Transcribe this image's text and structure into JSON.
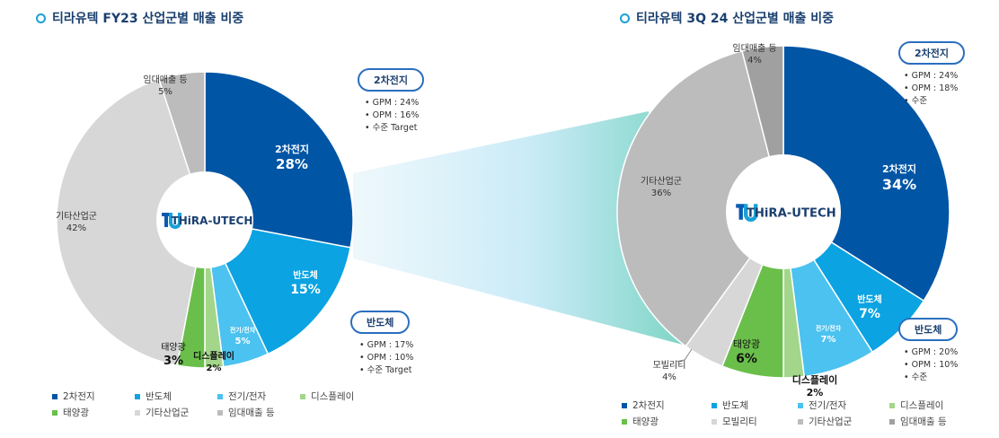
{
  "chart_data": [
    {
      "type": "pie",
      "title": "티라유텍  FY23 산업군별 매출 비중",
      "center_logo": "THiRA-UTECH",
      "slices": [
        {
          "label": "2차전지",
          "value": 28,
          "value_label": "28%",
          "color": "#0055a5"
        },
        {
          "label": "반도체",
          "value": 15,
          "value_label": "15%",
          "color": "#0ba3e2"
        },
        {
          "label": "전기/전자",
          "value": 5,
          "value_label": "5%",
          "color": "#4cc2f0"
        },
        {
          "label": "디스플레이",
          "value": 2,
          "value_label": "2%",
          "color": "#a3d68a"
        },
        {
          "label": "태양광",
          "value": 3,
          "value_label": "3%",
          "color": "#6abf4b"
        },
        {
          "label": "기타산업군",
          "value": 42,
          "value_label": "42%",
          "color": "#d7d7d7"
        },
        {
          "label": "임대매출 등",
          "value": 5,
          "value_label": "5%",
          "color": "#bcbcbc"
        }
      ],
      "legend": [
        "2차전지",
        "반도체",
        "전기/전자",
        "디스플레이",
        "태양광",
        "기타산업군",
        "임대매출 등"
      ]
    },
    {
      "type": "pie",
      "title": "티라유텍  3Q 24 산업군별 매출 비중",
      "center_logo": "THiRA-UTECH",
      "slices": [
        {
          "label": "2차전지",
          "value": 34,
          "value_label": "34%",
          "color": "#0055a5"
        },
        {
          "label": "반도체",
          "value": 7,
          "value_label": "7%",
          "color": "#0ba3e2"
        },
        {
          "label": "전기/전자",
          "value": 7,
          "value_label": "7%",
          "color": "#4cc2f0"
        },
        {
          "label": "디스플레이",
          "value": 2,
          "value_label": "2%",
          "color": "#a3d68a"
        },
        {
          "label": "태양광",
          "value": 6,
          "value_label": "6%",
          "color": "#6abf4b"
        },
        {
          "label": "모빌리티",
          "value": 4,
          "value_label": "4%",
          "color": "#d7d7d7"
        },
        {
          "label": "기타산업군",
          "value": 36,
          "value_label": "36%",
          "color": "#bcbcbc"
        },
        {
          "label": "임대매출 등",
          "value": 4,
          "value_label": "4%",
          "color": "#a0a0a0"
        }
      ],
      "legend": [
        "2차전지",
        "반도체",
        "전기/전자",
        "디스플레이",
        "태양광",
        "모빌리티",
        "기타산업군",
        "임대매출 등"
      ]
    }
  ],
  "callouts": {
    "fy23_battery": {
      "label": "2차전지",
      "bullets": [
        "GPM : 24%",
        "OPM : 16%",
        "수준 Target"
      ]
    },
    "fy23_semi": {
      "label": "반도체",
      "bullets": [
        "GPM : 17%",
        "OPM : 10%",
        "수준 Target"
      ]
    },
    "q3_battery": {
      "label": "2차전지",
      "bullets": [
        "GPM :  24%",
        "OPM : 18%",
        "수준"
      ]
    },
    "q3_semi": {
      "label": "반도체",
      "bullets": [
        "GPM : 20%",
        "OPM : 10%",
        "수준"
      ]
    }
  }
}
